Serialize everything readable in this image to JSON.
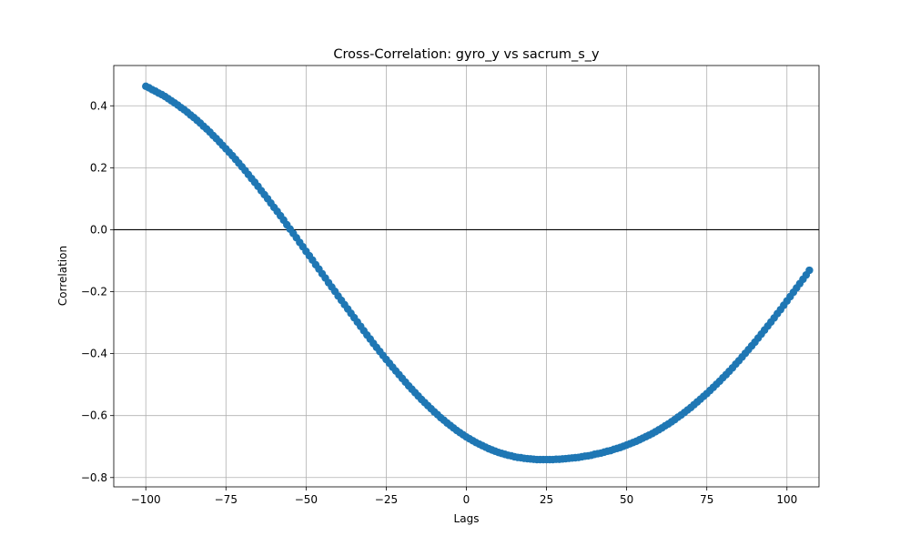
{
  "chart_data": {
    "type": "scatter",
    "title": "Cross-Correlation: gyro_y vs sacrum_s_y",
    "xlabel": "Lags",
    "ylabel": "Correlation",
    "xlim": [
      -110,
      110
    ],
    "ylim": [
      -0.83,
      0.53
    ],
    "xticks": [
      -100,
      -75,
      -50,
      -25,
      0,
      25,
      50,
      75,
      100
    ],
    "yticks": [
      0.4,
      0.2,
      0.0,
      -0.2,
      -0.4,
      -0.6,
      -0.8
    ],
    "xtick_labels": [
      "−100",
      "−75",
      "−50",
      "−25",
      "0",
      "25",
      "50",
      "75",
      "100"
    ],
    "ytick_labels": [
      "0.4",
      "0.2",
      "0.0",
      "−0.2",
      "−0.4",
      "−0.6",
      "−0.8"
    ],
    "grid": true,
    "hline": 0.0,
    "marker_color": "#1f77b4",
    "series": [
      {
        "x_start": -100,
        "x_step": 1,
        "values": [
          0.463,
          0.458,
          0.452,
          0.447,
          0.441,
          0.436,
          0.43,
          0.423,
          0.416,
          0.409,
          0.402,
          0.394,
          0.387,
          0.379,
          0.37,
          0.362,
          0.353,
          0.344,
          0.334,
          0.325,
          0.315,
          0.304,
          0.294,
          0.283,
          0.272,
          0.261,
          0.25,
          0.239,
          0.227,
          0.215,
          0.203,
          0.191,
          0.178,
          0.165,
          0.153,
          0.14,
          0.126,
          0.113,
          0.1,
          0.086,
          0.072,
          0.059,
          0.045,
          0.031,
          0.016,
          0.002,
          -0.012,
          -0.026,
          -0.041,
          -0.055,
          -0.07,
          -0.084,
          -0.098,
          -0.113,
          -0.127,
          -0.142,
          -0.156,
          -0.171,
          -0.185,
          -0.199,
          -0.214,
          -0.228,
          -0.242,
          -0.256,
          -0.27,
          -0.284,
          -0.298,
          -0.312,
          -0.326,
          -0.34,
          -0.353,
          -0.367,
          -0.38,
          -0.393,
          -0.406,
          -0.419,
          -0.431,
          -0.444,
          -0.456,
          -0.468,
          -0.48,
          -0.492,
          -0.504,
          -0.515,
          -0.526,
          -0.537,
          -0.548,
          -0.558,
          -0.568,
          -0.578,
          -0.588,
          -0.597,
          -0.607,
          -0.615,
          -0.624,
          -0.632,
          -0.64,
          -0.648,
          -0.655,
          -0.662,
          -0.669,
          -0.675,
          -0.681,
          -0.687,
          -0.692,
          -0.697,
          -0.702,
          -0.707,
          -0.711,
          -0.715,
          -0.719,
          -0.722,
          -0.725,
          -0.728,
          -0.73,
          -0.733,
          -0.735,
          -0.736,
          -0.738,
          -0.739,
          -0.74,
          -0.741,
          -0.742,
          -0.742,
          -0.742,
          -0.742,
          -0.742,
          -0.742,
          -0.741,
          -0.741,
          -0.74,
          -0.739,
          -0.738,
          -0.737,
          -0.736,
          -0.735,
          -0.733,
          -0.731,
          -0.73,
          -0.728,
          -0.725,
          -0.723,
          -0.721,
          -0.718,
          -0.715,
          -0.713,
          -0.709,
          -0.706,
          -0.703,
          -0.699,
          -0.695,
          -0.691,
          -0.687,
          -0.683,
          -0.678,
          -0.673,
          -0.668,
          -0.663,
          -0.658,
          -0.652,
          -0.646,
          -0.64,
          -0.633,
          -0.627,
          -0.62,
          -0.613,
          -0.605,
          -0.598,
          -0.59,
          -0.582,
          -0.574,
          -0.565,
          -0.556,
          -0.547,
          -0.538,
          -0.529,
          -0.519,
          -0.509,
          -0.499,
          -0.489,
          -0.478,
          -0.468,
          -0.457,
          -0.446,
          -0.434,
          -0.423,
          -0.411,
          -0.399,
          -0.387,
          -0.375,
          -0.363,
          -0.35,
          -0.337,
          -0.324,
          -0.311,
          -0.298,
          -0.285,
          -0.271,
          -0.258,
          -0.244,
          -0.23,
          -0.216,
          -0.202,
          -0.188,
          -0.174,
          -0.16,
          -0.146,
          -0.131
        ]
      }
    ]
  }
}
